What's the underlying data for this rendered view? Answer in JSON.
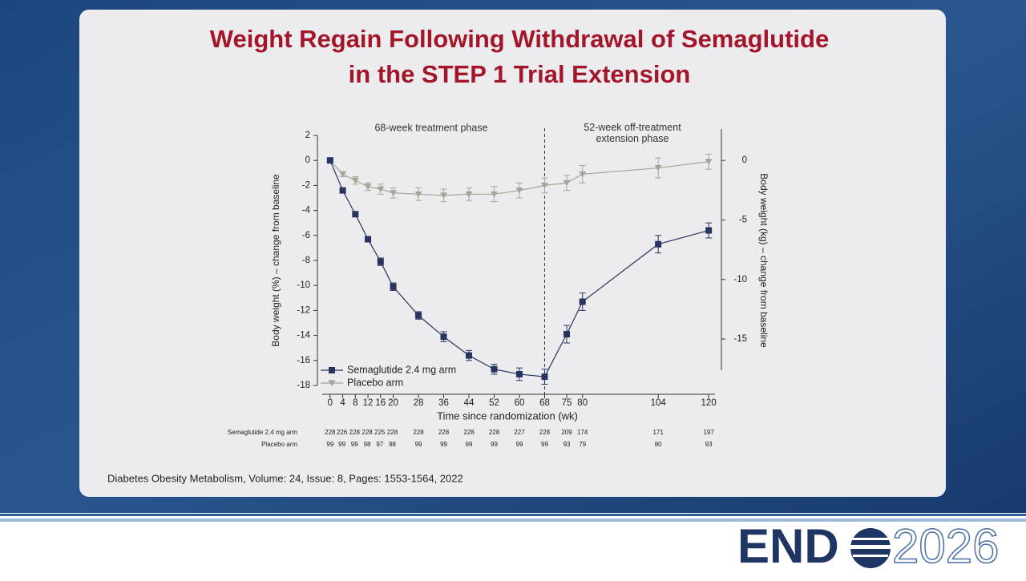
{
  "slide": {
    "title_lines": [
      "Weight Regain Following Withdrawal of Semaglutide",
      "in the STEP 1 Trial Extension"
    ],
    "citation": "Diabetes Obesity Metabolism, Volume: 24, Issue: 8, Pages: 1553-1564, 2022",
    "logo": {
      "left": "END",
      "right": "2026"
    }
  },
  "chart_data": {
    "type": "line",
    "phase_labels": [
      "68-week treatment phase",
      "52-week off-treatment extension phase"
    ],
    "divider_x": 68,
    "xlabel": "Time since randomization (wk)",
    "ylabel": "Body weight (%) – change from baseline",
    "y2label": "Body weight (kg) – change from baseline",
    "x": [
      0,
      4,
      8,
      12,
      16,
      20,
      28,
      36,
      44,
      52,
      60,
      68,
      75,
      80,
      104,
      120
    ],
    "xlim": [
      -2.5,
      122
    ],
    "xticks": [
      0,
      4,
      8,
      12,
      16,
      20,
      28,
      36,
      44,
      52,
      60,
      68,
      75,
      80,
      104,
      120
    ],
    "ylim": [
      -18,
      2
    ],
    "yticks": [
      2,
      0,
      -2,
      -4,
      -6,
      -8,
      -10,
      -12,
      -14,
      -16,
      -18
    ],
    "y2lim": [
      -18.9,
      2.1
    ],
    "y2ticks": [
      0,
      -5,
      -10,
      -15
    ],
    "series": [
      {
        "name": "Semaglutide 2.4 mg arm",
        "color": "#27345e",
        "marker": "square",
        "values": [
          0,
          -2.4,
          -4.3,
          -6.3,
          -8.1,
          -10.1,
          -12.4,
          -14.1,
          -15.6,
          -16.7,
          -17.1,
          -17.3,
          -13.9,
          -11.3,
          -6.7,
          -5.6
        ],
        "errors": [
          0.1,
          0.2,
          0.2,
          0.2,
          0.3,
          0.3,
          0.3,
          0.4,
          0.4,
          0.4,
          0.5,
          0.6,
          0.7,
          0.7,
          0.7,
          0.6
        ]
      },
      {
        "name": "Placebo arm",
        "color": "#a4a497",
        "marker": "triangle",
        "values": [
          0,
          -1.1,
          -1.6,
          -2.1,
          -2.3,
          -2.6,
          -2.7,
          -2.8,
          -2.7,
          -2.7,
          -2.4,
          -2.0,
          -1.8,
          -1.1,
          -0.6,
          -0.1
        ],
        "errors": [
          0.1,
          0.2,
          0.3,
          0.3,
          0.4,
          0.4,
          0.5,
          0.5,
          0.5,
          0.6,
          0.6,
          0.6,
          0.6,
          0.7,
          0.8,
          0.6
        ]
      }
    ],
    "at_risk": [
      {
        "label": "Semaglutide 2.4 mg arm",
        "values": [
          228,
          226,
          228,
          228,
          225,
          228,
          228,
          228,
          228,
          228,
          227,
          228,
          209,
          174,
          171,
          197
        ]
      },
      {
        "label": "Placebo arm",
        "values": [
          99,
          99,
          99,
          98,
          97,
          98,
          99,
          99,
          99,
          99,
          99,
          99,
          93,
          79,
          80,
          93
        ]
      }
    ]
  }
}
